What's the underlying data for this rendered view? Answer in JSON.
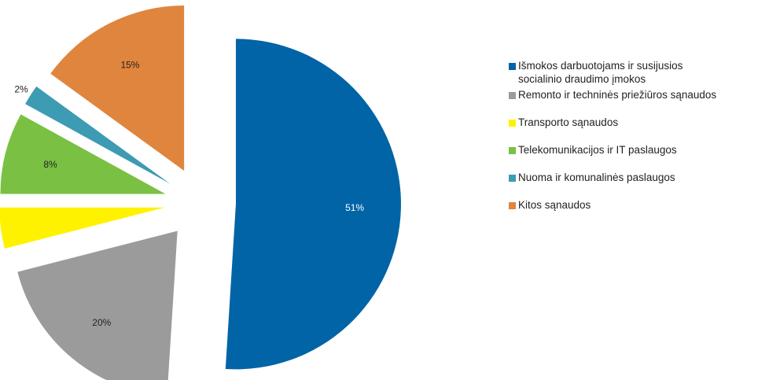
{
  "chart_data": {
    "type": "pie",
    "exploded": true,
    "title": "",
    "slices": [
      {
        "label": "Išmokos darbuotojams ir susijusios socialinio draudimo įmokos",
        "value": 51,
        "display": "51%",
        "color": "#0064A6"
      },
      {
        "label": "Remonto ir techninės priežiūros sąnaudos",
        "value": 20,
        "display": "20%",
        "color": "#9B9B9B"
      },
      {
        "label": "Transporto sąnaudos",
        "value": 4,
        "display": "4%",
        "color": "#FFF200"
      },
      {
        "label": "Telekomunikacijos ir IT paslaugos",
        "value": 8,
        "display": "8%",
        "color": "#7AC143"
      },
      {
        "label": "Nuoma ir komunalinės paslaugos",
        "value": 2,
        "display": "2%",
        "color": "#3D9BB3"
      },
      {
        "label": "Kitos sąnaudos",
        "value": 15,
        "display": "15%",
        "color": "#E0853D"
      }
    ],
    "legend": {
      "position": "right",
      "items": [
        {
          "lines": [
            "Išmokos darbuotojams ir susijusios",
            "socialinio draudimo įmokos"
          ],
          "color": "#0064A6"
        },
        {
          "lines": [
            "Remonto ir techninės priežiūros sąnaudos"
          ],
          "color": "#9B9B9B"
        },
        {
          "lines": [
            "Transporto sąnaudos"
          ],
          "color": "#FFF200"
        },
        {
          "lines": [
            "Telekomunikacijos ir IT paslaugos"
          ],
          "color": "#7AC143"
        },
        {
          "lines": [
            "Nuoma ir komunalinės paslaugos"
          ],
          "color": "#3D9BB3"
        },
        {
          "lines": [
            "Kitos sąnaudos"
          ],
          "color": "#E0853D"
        }
      ]
    }
  }
}
